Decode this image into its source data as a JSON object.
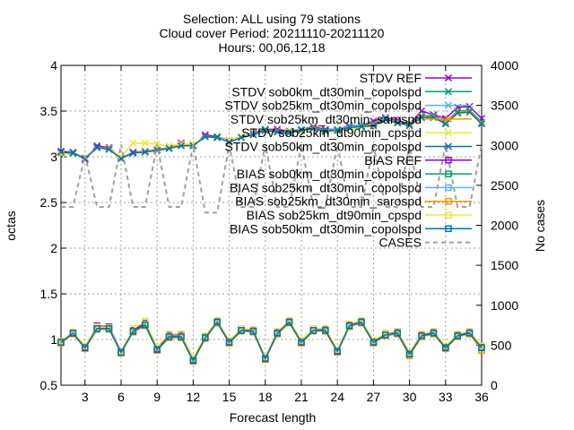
{
  "chart_data": {
    "type": "line",
    "title_lines": [
      "Selection: ALL using    79 stations",
      "Cloud cover   Period: 20211110-20211120",
      "Hours: 00,06,12,18"
    ],
    "xlabel": "Forecast length",
    "ylabel": "octas",
    "y2label": "No cases",
    "xlim": [
      1,
      36
    ],
    "ylim": [
      0.5,
      4
    ],
    "y2lim": [
      0,
      4000
    ],
    "x_ticks": [
      3,
      6,
      9,
      12,
      15,
      18,
      21,
      24,
      27,
      30,
      33,
      36
    ],
    "y_ticks": [
      "0.5",
      "1",
      "1.5",
      "2",
      "2.5",
      "3",
      "3.5",
      "4"
    ],
    "y2_ticks": [
      "0",
      "500",
      "1000",
      "1500",
      "2000",
      "2500",
      "3000",
      "3500",
      "4000"
    ],
    "grid": true,
    "legend_position": "top-right",
    "x": [
      1,
      2,
      3,
      4,
      5,
      6,
      7,
      8,
      9,
      10,
      11,
      12,
      13,
      14,
      15,
      16,
      17,
      18,
      19,
      20,
      21,
      22,
      23,
      24,
      25,
      26,
      27,
      28,
      29,
      30,
      31,
      32,
      33,
      34,
      35,
      36
    ],
    "series": [
      {
        "name": "STDV REF",
        "color": "#9400d3",
        "marker": "x",
        "axis": "y1",
        "values": [
          3.06,
          3.05,
          2.97,
          3.12,
          3.1,
          2.98,
          3.05,
          3.06,
          3.08,
          3.1,
          3.15,
          3.12,
          3.24,
          3.22,
          3.18,
          3.22,
          3.26,
          3.3,
          3.3,
          3.28,
          3.3,
          3.33,
          3.3,
          3.3,
          3.34,
          3.34,
          3.39,
          3.43,
          3.4,
          3.36,
          3.5,
          3.46,
          3.42,
          3.54,
          3.55,
          3.42
        ]
      },
      {
        "name": "STDV sob0km_dt30min_copolspd",
        "color": "#009e73",
        "marker": "x",
        "axis": "y1",
        "values": [
          3.05,
          3.04,
          2.99,
          3.1,
          3.09,
          2.99,
          3.04,
          3.06,
          3.08,
          3.1,
          3.13,
          3.13,
          3.22,
          3.22,
          3.17,
          3.22,
          3.25,
          3.3,
          3.28,
          3.28,
          3.3,
          3.32,
          3.29,
          3.3,
          3.33,
          3.34,
          3.36,
          3.42,
          3.38,
          3.36,
          3.45,
          3.45,
          3.38,
          3.5,
          3.51,
          3.38
        ]
      },
      {
        "name": "STDV sob25km_dt30min_copolspd",
        "color": "#56b4e9",
        "marker": "x",
        "axis": "y1",
        "values": [
          3.05,
          3.04,
          2.99,
          3.1,
          3.09,
          2.99,
          3.04,
          3.06,
          3.08,
          3.1,
          3.13,
          3.13,
          3.22,
          3.21,
          3.17,
          3.22,
          3.25,
          3.29,
          3.28,
          3.27,
          3.3,
          3.32,
          3.28,
          3.3,
          3.33,
          3.33,
          3.35,
          3.42,
          3.38,
          3.35,
          3.44,
          3.44,
          3.37,
          3.49,
          3.5,
          3.37
        ]
      },
      {
        "name": "STDV sob25km_dt30min_sarospd",
        "color": "#e69f00",
        "marker": "x",
        "axis": "y1",
        "values": [
          3.04,
          3.04,
          2.98,
          3.1,
          3.09,
          2.99,
          3.04,
          3.06,
          3.08,
          3.1,
          3.13,
          3.13,
          3.22,
          3.21,
          3.17,
          3.22,
          3.25,
          3.29,
          3.28,
          3.27,
          3.29,
          3.32,
          3.28,
          3.29,
          3.32,
          3.33,
          3.35,
          3.41,
          3.38,
          3.35,
          3.44,
          3.44,
          3.37,
          3.49,
          3.5,
          3.37
        ]
      },
      {
        "name": "STDV sob25km_dt90min_cpspd",
        "color": "#f0e442",
        "marker": "x",
        "axis": "y1",
        "values": [
          3.03,
          3.03,
          2.99,
          3.1,
          3.08,
          3.0,
          3.15,
          3.15,
          3.14,
          3.12,
          3.14,
          3.14,
          3.22,
          3.21,
          3.18,
          3.22,
          3.25,
          3.28,
          3.27,
          3.27,
          3.28,
          3.31,
          3.27,
          3.28,
          3.31,
          3.32,
          3.33,
          3.4,
          3.37,
          3.34,
          3.42,
          3.43,
          3.36,
          3.47,
          3.48,
          3.36
        ]
      },
      {
        "name": "STDV sob50km_dt30min_copolspd",
        "color": "#0072b2",
        "marker": "x",
        "axis": "y1",
        "values": [
          3.05,
          3.04,
          2.98,
          3.1,
          3.08,
          2.98,
          3.04,
          3.05,
          3.07,
          3.09,
          3.12,
          3.12,
          3.22,
          3.21,
          3.16,
          3.21,
          3.24,
          3.29,
          3.27,
          3.26,
          3.29,
          3.31,
          3.28,
          3.29,
          3.32,
          3.33,
          3.34,
          3.41,
          3.37,
          3.34,
          3.43,
          3.43,
          3.36,
          3.48,
          3.49,
          3.36
        ]
      },
      {
        "name": "BIAS REF",
        "color": "#9400d3",
        "marker": "square",
        "axis": "y1",
        "values": [
          0.98,
          1.08,
          0.92,
          1.15,
          1.14,
          0.87,
          1.1,
          1.18,
          0.9,
          1.05,
          1.05,
          0.78,
          1.03,
          1.2,
          0.98,
          1.12,
          1.1,
          0.8,
          1.08,
          1.2,
          0.98,
          1.12,
          1.11,
          0.88,
          1.16,
          1.2,
          0.98,
          1.07,
          1.08,
          0.85,
          1.05,
          1.08,
          0.92,
          1.05,
          1.08,
          0.92
        ]
      },
      {
        "name": "BIAS sob0km_dt30min_copolspd",
        "color": "#009e73",
        "marker": "square",
        "axis": "y1",
        "values": [
          0.97,
          1.07,
          0.91,
          1.12,
          1.12,
          0.86,
          1.09,
          1.16,
          0.89,
          1.03,
          1.03,
          0.77,
          1.02,
          1.19,
          0.97,
          1.1,
          1.09,
          0.79,
          1.07,
          1.19,
          0.97,
          1.1,
          1.1,
          0.87,
          1.15,
          1.19,
          0.97,
          1.05,
          1.07,
          0.84,
          1.04,
          1.07,
          0.91,
          1.04,
          1.07,
          0.91
        ]
      },
      {
        "name": "BIAS sob25km_dt30min_copolspd",
        "color": "#56b4e9",
        "marker": "square",
        "axis": "y1",
        "values": [
          0.97,
          1.07,
          0.91,
          1.12,
          1.12,
          0.86,
          1.09,
          1.16,
          0.89,
          1.03,
          1.03,
          0.77,
          1.02,
          1.19,
          0.97,
          1.1,
          1.09,
          0.79,
          1.07,
          1.19,
          0.97,
          1.1,
          1.1,
          0.87,
          1.15,
          1.19,
          0.97,
          1.05,
          1.07,
          0.84,
          1.04,
          1.07,
          0.91,
          1.04,
          1.07,
          0.91
        ]
      },
      {
        "name": "BIAS sob25km_dt30min_sarospd",
        "color": "#e69f00",
        "marker": "square",
        "axis": "y1",
        "values": [
          0.96,
          1.06,
          0.9,
          1.11,
          1.11,
          0.85,
          1.08,
          1.15,
          0.88,
          1.02,
          1.02,
          0.76,
          1.01,
          1.18,
          0.96,
          1.09,
          1.08,
          0.78,
          1.06,
          1.18,
          0.96,
          1.09,
          1.09,
          0.86,
          1.14,
          1.18,
          0.96,
          1.04,
          1.06,
          0.82,
          1.03,
          1.06,
          0.9,
          1.03,
          1.06,
          0.88
        ]
      },
      {
        "name": "BIAS sob25km_dt90min_cpspd",
        "color": "#f0e442",
        "marker": "square",
        "axis": "y1",
        "values": [
          0.98,
          1.08,
          0.93,
          1.14,
          1.13,
          0.87,
          1.12,
          1.2,
          0.92,
          1.06,
          1.06,
          0.8,
          1.04,
          1.21,
          0.99,
          1.12,
          1.11,
          0.81,
          1.09,
          1.21,
          0.99,
          1.12,
          1.12,
          0.89,
          1.17,
          1.21,
          0.99,
          1.07,
          1.09,
          0.86,
          1.06,
          1.09,
          0.93,
          1.06,
          1.09,
          0.93
        ]
      },
      {
        "name": "BIAS sob50km_dt30min_copolspd",
        "color": "#0072b2",
        "marker": "square",
        "axis": "y1",
        "values": [
          0.97,
          1.07,
          0.91,
          1.12,
          1.12,
          0.86,
          1.09,
          1.16,
          0.89,
          1.03,
          1.03,
          0.77,
          1.02,
          1.19,
          0.97,
          1.1,
          1.09,
          0.79,
          1.07,
          1.19,
          0.97,
          1.1,
          1.1,
          0.87,
          1.15,
          1.19,
          0.97,
          1.05,
          1.07,
          0.84,
          1.04,
          1.07,
          0.91,
          1.04,
          1.07,
          0.91
        ]
      },
      {
        "name": "CASES",
        "color": "#a0a0a0",
        "marker": "none",
        "dashed": true,
        "axis": "y2",
        "values": [
          2230,
          2230,
          2880,
          2230,
          2230,
          3010,
          2230,
          2230,
          3010,
          2230,
          2230,
          3010,
          2160,
          2160,
          3010,
          2230,
          2230,
          3010,
          2230,
          2230,
          3010,
          2230,
          2230,
          3010,
          2230,
          2230,
          3010,
          2230,
          2230,
          3010,
          2230,
          2230,
          3010,
          2230,
          2230,
          3010
        ]
      }
    ],
    "legend": [
      {
        "label": "STDV REF",
        "series": 0
      },
      {
        "label": "STDV sob0km_dt30min_copolspd",
        "series": 1
      },
      {
        "label": "STDV sob25km_dt30min_copolspd",
        "series": 2
      },
      {
        "label": "STDV sob25km_dt30min_sarospd",
        "series": 3
      },
      {
        "label": "STDV sob25km_dt90min_cpspd",
        "series": 4
      },
      {
        "label": "STDV sob50km_dt30min_copolspd",
        "series": 5
      },
      {
        "label": "BIAS REF",
        "series": 6
      },
      {
        "label": "BIAS sob0km_dt30min_copolspd",
        "series": 7
      },
      {
        "label": "BIAS sob25km_dt30min_copolspd",
        "series": 8
      },
      {
        "label": "BIAS sob25km_dt30min_sarospd",
        "series": 9
      },
      {
        "label": "BIAS sob25km_dt90min_cpspd",
        "series": 10
      },
      {
        "label": "BIAS sob50km_dt30min_copolspd",
        "series": 11
      },
      {
        "label": "CASES",
        "series": 12
      }
    ]
  }
}
